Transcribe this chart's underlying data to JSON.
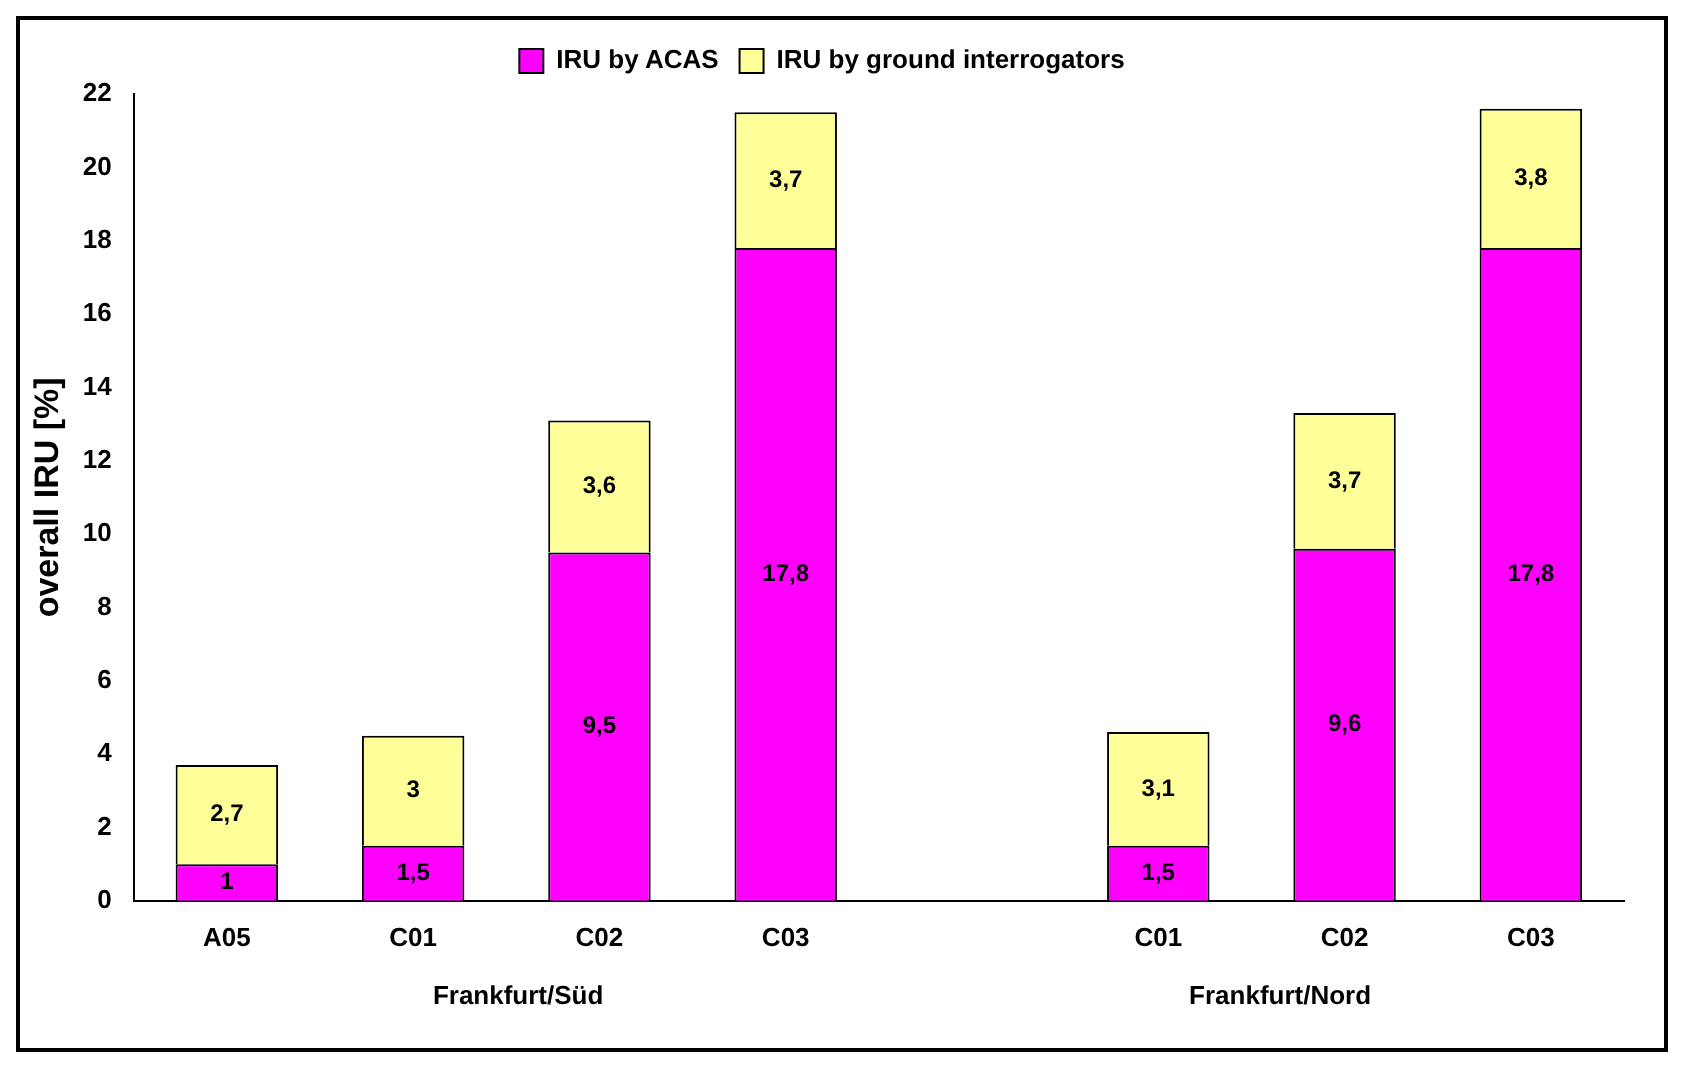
{
  "chart_data": {
    "type": "bar",
    "stacked": true,
    "ylabel": "overall IRU [%]",
    "categories": [
      "A05",
      "C01",
      "C02",
      "C03",
      null,
      "C01",
      "C02",
      "C03"
    ],
    "series": [
      {
        "name": "IRU by ACAS",
        "color": "#ff00ff",
        "values": [
          1,
          1.5,
          9.5,
          17.8,
          null,
          1.5,
          9.6,
          17.8
        ],
        "value_labels": [
          "1",
          "1,5",
          "9,5",
          "17,8",
          null,
          "1,5",
          "9,6",
          "17,8"
        ]
      },
      {
        "name": "IRU by ground interrogators",
        "color": "#ffff99",
        "values": [
          2.7,
          3,
          3.6,
          3.7,
          null,
          3.1,
          3.7,
          3.8
        ],
        "value_labels": [
          "2,7",
          "3",
          "3,6",
          "3,7",
          null,
          "3,1",
          "3,7",
          "3,8"
        ]
      }
    ],
    "ylim": [
      0,
      22
    ],
    "yticks": [
      0,
      2,
      4,
      6,
      8,
      10,
      12,
      14,
      16,
      18,
      20,
      22
    ],
    "legend": "top",
    "grid": false,
    "annotations": [
      "Frankfurt/Süd",
      "Frankfurt/Nord"
    ]
  }
}
